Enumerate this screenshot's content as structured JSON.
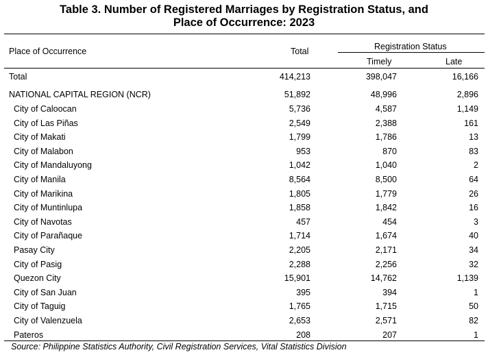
{
  "title_line1": "Table 3.  Number of Registered Marriages by Registration Status, and",
  "title_line2": "Place of Occurrence: 2023",
  "headers": {
    "place": "Place of Occurrence",
    "total": "Total",
    "group": "Registration Status",
    "timely": "Timely",
    "late": "Late"
  },
  "rows": [
    {
      "place": "Total",
      "total": "414,213",
      "timely": "398,047",
      "late": "16,166",
      "indent": false
    },
    {
      "place": "NATIONAL CAPITAL REGION (NCR)",
      "total": "51,892",
      "timely": "48,996",
      "late": "2,896",
      "indent": false
    },
    {
      "place": "City of Caloocan",
      "total": "5,736",
      "timely": "4,587",
      "late": "1,149",
      "indent": true
    },
    {
      "place": "City of Las Piñas",
      "total": "2,549",
      "timely": "2,388",
      "late": "161",
      "indent": true
    },
    {
      "place": "City of Makati",
      "total": "1,799",
      "timely": "1,786",
      "late": "13",
      "indent": true
    },
    {
      "place": "City of Malabon",
      "total": "953",
      "timely": "870",
      "late": "83",
      "indent": true
    },
    {
      "place": "City of Mandaluyong",
      "total": "1,042",
      "timely": "1,040",
      "late": "2",
      "indent": true
    },
    {
      "place": "City of Manila",
      "total": "8,564",
      "timely": "8,500",
      "late": "64",
      "indent": true
    },
    {
      "place": "City of Marikina",
      "total": "1,805",
      "timely": "1,779",
      "late": "26",
      "indent": true
    },
    {
      "place": "City of Muntinlupa",
      "total": "1,858",
      "timely": "1,842",
      "late": "16",
      "indent": true
    },
    {
      "place": "City of Navotas",
      "total": "457",
      "timely": "454",
      "late": "3",
      "indent": true
    },
    {
      "place": "City of Parañaque",
      "total": "1,714",
      "timely": "1,674",
      "late": "40",
      "indent": true
    },
    {
      "place": "Pasay City",
      "total": "2,205",
      "timely": "2,171",
      "late": "34",
      "indent": true
    },
    {
      "place": "City of Pasig",
      "total": "2,288",
      "timely": "2,256",
      "late": "32",
      "indent": true
    },
    {
      "place": "Quezon City",
      "total": "15,901",
      "timely": "14,762",
      "late": "1,139",
      "indent": true
    },
    {
      "place": "City of San Juan",
      "total": "395",
      "timely": "394",
      "late": "1",
      "indent": true
    },
    {
      "place": "City of Taguig",
      "total": "1,765",
      "timely": "1,715",
      "late": "50",
      "indent": true
    },
    {
      "place": "City of Valenzuela",
      "total": "2,653",
      "timely": "2,571",
      "late": "82",
      "indent": true
    },
    {
      "place": "Pateros",
      "total": "208",
      "timely": "207",
      "late": "1",
      "indent": true
    }
  ],
  "source": "Source: Philippine Statistics Authority, Civil Registration Services, Vital Statistics Division"
}
